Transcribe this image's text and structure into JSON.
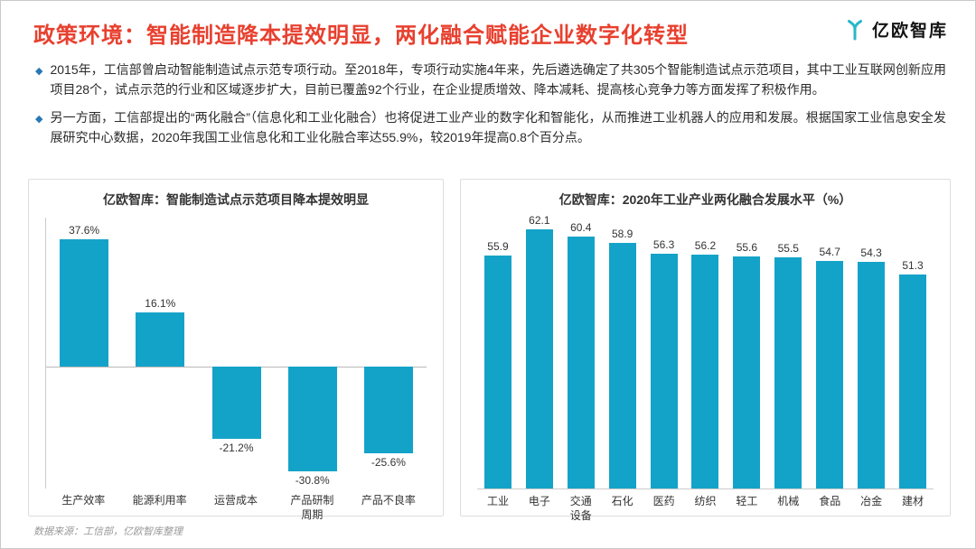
{
  "header": {
    "title": "政策环境：智能制造降本提效明显，两化融合赋能企业数字化转型",
    "logo_text": "亿欧智库"
  },
  "bullets": [
    "2015年，工信部曾启动智能制造试点示范专项行动。至2018年，专项行动实施4年来，先后遴选确定了共305个智能制造试点示范项目，其中工业互联网创新应用项目28个，试点示范的行业和区域逐步扩大，目前已覆盖92个行业，在企业提质增效、降本减耗、提高核心竞争力等方面发挥了积极作用。",
    "另一方面，工信部提出的“两化融合”（信息化和工业化融合）也将促进工业产业的数字化和智能化，从而推进工业机器人的应用和发展。根据国家工业信息安全发展研究中心数据，2020年我国工业信息化和工业化融合率达55.9%，较2019年提高0.8个百分点。"
  ],
  "footer": {
    "source": "数据来源：工信部，亿欧智库整理"
  },
  "colors": {
    "title_red": "#e8402f",
    "bullet_blue": "#2878b5",
    "bar_teal": "#14a3c8",
    "logo_teal": "#29b7c9"
  },
  "chart_data": [
    {
      "type": "bar",
      "title": "亿欧智库：智能制造试点示范项目降本提效明显",
      "categories": [
        "生产效率",
        "能源利用率",
        "运营成本",
        "产品研制\n周期",
        "产品不良率"
      ],
      "values": [
        37.6,
        16.1,
        -21.2,
        -30.8,
        -25.6
      ],
      "value_labels": [
        "37.6%",
        "16.1%",
        "-21.2%",
        "-30.8%",
        "-25.6%"
      ],
      "xlabel": "",
      "ylabel": "",
      "ylim": [
        -36,
        44
      ],
      "grid": false,
      "legend": false,
      "bar_color": "#14a3c8"
    },
    {
      "type": "bar",
      "title": "亿欧智库：2020年工业产业两化融合发展水平（%）",
      "categories": [
        "工业",
        "电子",
        "交通\n设备",
        "石化",
        "医药",
        "纺织",
        "轻工",
        "机械",
        "食品",
        "冶金",
        "建材"
      ],
      "values": [
        55.9,
        62.1,
        60.4,
        58.9,
        56.3,
        56.2,
        55.6,
        55.5,
        54.7,
        54.3,
        51.3
      ],
      "value_labels": [
        "55.9",
        "62.1",
        "60.4",
        "58.9",
        "56.3",
        "56.2",
        "55.6",
        "55.5",
        "54.7",
        "54.3",
        "51.3"
      ],
      "xlabel": "",
      "ylabel": "",
      "ylim": [
        0,
        65
      ],
      "grid": false,
      "legend": false,
      "bar_color": "#14a3c8"
    }
  ]
}
